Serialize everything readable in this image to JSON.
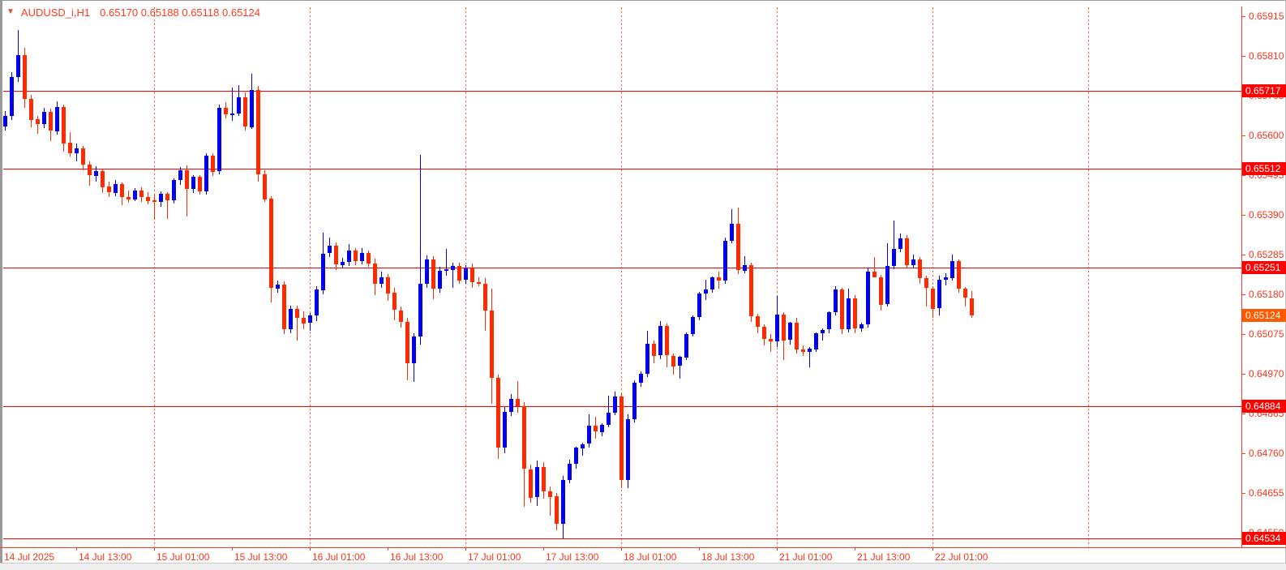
{
  "header": {
    "symbol_period": "AUDUSD_i,H1",
    "ohlc_text": "0.65170 0.65188 0.65118 0.65124",
    "triangle_icon": "▼"
  },
  "colors": {
    "bull": "#0000ee",
    "bear": "#ff2a00",
    "hline": "#ff0000",
    "grid": "#ff5c30",
    "axis": "#ff3c1e",
    "axis_text": "#ff3319",
    "line_label_bg": "#ff0000",
    "current_label_bg": "#ff5a00",
    "label_text": "#ffffff"
  },
  "price_axis": {
    "ticks": [
      "0.65915",
      "0.65810",
      "0.65705",
      "0.65600",
      "0.65495",
      "0.65390",
      "0.65285",
      "0.65180",
      "0.65075",
      "0.64970",
      "0.64865",
      "0.64760",
      "0.64655",
      "0.64550"
    ],
    "line_labels": [
      "0.65717",
      "0.65512",
      "0.65251",
      "0.64884",
      "0.64534"
    ],
    "current_label": "0.65124"
  },
  "time_axis": {
    "labels": [
      {
        "text": "14 Jul 2025",
        "bar": -1
      },
      {
        "text": "14 Jul 13:00",
        "bar": 11
      },
      {
        "text": "15 Jul 01:00",
        "bar": 23
      },
      {
        "text": "15 Jul 13:00",
        "bar": 35
      },
      {
        "text": "16 Jul 01:00",
        "bar": 47
      },
      {
        "text": "16 Jul 13:00",
        "bar": 59
      },
      {
        "text": "17 Jul 01:00",
        "bar": 71
      },
      {
        "text": "17 Jul 13:00",
        "bar": 83
      },
      {
        "text": "18 Jul 01:00",
        "bar": 95
      },
      {
        "text": "18 Jul 13:00",
        "bar": 107
      },
      {
        "text": "21 Jul 01:00",
        "bar": 119
      },
      {
        "text": "21 Jul 13:00",
        "bar": 131
      },
      {
        "text": "22 Jul 01:00",
        "bar": 143
      }
    ]
  },
  "chart_data": {
    "type": "candlestick",
    "symbol": "AUDUSD_i",
    "timeframe": "H1",
    "title": "AUDUSD_i,H1 0.65170 0.65188 0.65118 0.65124",
    "current_bar_ohlc": {
      "open": 0.6517,
      "high": 0.65188,
      "low": 0.65118,
      "close": 0.65124
    },
    "current_price": 0.65124,
    "horizontal_lines": [
      0.65717,
      0.65512,
      0.65251,
      0.64884,
      0.64534
    ],
    "y_axis": {
      "top_price": 0.65915,
      "tick_step": 0.00105,
      "ticks": [
        0.65915,
        0.6581,
        0.65705,
        0.656,
        0.65495,
        0.6539,
        0.65285,
        0.6518,
        0.65075,
        0.6497,
        0.64865,
        0.6476,
        0.64655,
        0.6455
      ]
    },
    "x_axis": {
      "first_bar_time": "14 Jul 2025 02:00",
      "interval_hours": 1,
      "grid_bars": [
        23,
        47,
        71,
        95,
        119,
        143,
        167
      ],
      "bars_per_day": 24
    },
    "candles": [
      [
        0.65625,
        0.65665,
        0.65612,
        0.65652
      ],
      [
        0.65652,
        0.65768,
        0.6564,
        0.65755
      ],
      [
        0.65755,
        0.65878,
        0.65742,
        0.65813
      ],
      [
        0.65813,
        0.65832,
        0.65672,
        0.65697
      ],
      [
        0.65697,
        0.65707,
        0.65622,
        0.65642
      ],
      [
        0.65642,
        0.65652,
        0.65604,
        0.6563
      ],
      [
        0.6563,
        0.65672,
        0.6562,
        0.65662
      ],
      [
        0.65662,
        0.6567,
        0.65585,
        0.65612
      ],
      [
        0.65612,
        0.6569,
        0.65602,
        0.65676
      ],
      [
        0.65676,
        0.65682,
        0.65558,
        0.6558
      ],
      [
        0.6558,
        0.65608,
        0.65545,
        0.65552
      ],
      [
        0.65552,
        0.65578,
        0.65532,
        0.65565
      ],
      [
        0.65565,
        0.65572,
        0.65508,
        0.65522
      ],
      [
        0.65522,
        0.65532,
        0.65468,
        0.65494
      ],
      [
        0.65494,
        0.65518,
        0.65478,
        0.65506
      ],
      [
        0.65506,
        0.65512,
        0.65448,
        0.65464
      ],
      [
        0.65464,
        0.65478,
        0.65438,
        0.65448
      ],
      [
        0.65448,
        0.65482,
        0.6544,
        0.65472
      ],
      [
        0.65472,
        0.65476,
        0.65415,
        0.65438
      ],
      [
        0.65438,
        0.65454,
        0.65422,
        0.65432
      ],
      [
        0.65432,
        0.6546,
        0.65426,
        0.65455
      ],
      [
        0.65455,
        0.65462,
        0.65424,
        0.65438
      ],
      [
        0.65438,
        0.6545,
        0.65418,
        0.65428
      ],
      [
        0.65428,
        0.65446,
        0.65378,
        0.65424
      ],
      [
        0.65424,
        0.65452,
        0.65412,
        0.65446
      ],
      [
        0.65446,
        0.6545,
        0.6538,
        0.65428
      ],
      [
        0.65428,
        0.65486,
        0.6542,
        0.65482
      ],
      [
        0.65482,
        0.65516,
        0.6547,
        0.65508
      ],
      [
        0.65508,
        0.6552,
        0.65385,
        0.65458
      ],
      [
        0.65458,
        0.65496,
        0.65448,
        0.6549
      ],
      [
        0.6549,
        0.65494,
        0.65444,
        0.65452
      ],
      [
        0.65452,
        0.65552,
        0.65444,
        0.65546
      ],
      [
        0.65546,
        0.65552,
        0.65492,
        0.65504
      ],
      [
        0.65504,
        0.65682,
        0.65498,
        0.65672
      ],
      [
        0.65672,
        0.65688,
        0.65644,
        0.65654
      ],
      [
        0.65654,
        0.65726,
        0.65638,
        0.65658
      ],
      [
        0.65658,
        0.65732,
        0.65652,
        0.657
      ],
      [
        0.657,
        0.65714,
        0.65612,
        0.65622
      ],
      [
        0.65622,
        0.65762,
        0.65618,
        0.6572
      ],
      [
        0.6572,
        0.6573,
        0.65478,
        0.65498
      ],
      [
        0.65498,
        0.65508,
        0.65424,
        0.65432
      ],
      [
        0.65432,
        0.6544,
        0.65158,
        0.65196
      ],
      [
        0.65196,
        0.65216,
        0.65184,
        0.65206
      ],
      [
        0.65206,
        0.65214,
        0.65074,
        0.65088
      ],
      [
        0.65088,
        0.6515,
        0.65078,
        0.65142
      ],
      [
        0.65142,
        0.6515,
        0.65058,
        0.65118
      ],
      [
        0.65118,
        0.65134,
        0.65088,
        0.65104
      ],
      [
        0.65104,
        0.6513,
        0.65084,
        0.65124
      ],
      [
        0.65124,
        0.65202,
        0.6511,
        0.65192
      ],
      [
        0.65192,
        0.65342,
        0.6518,
        0.65288
      ],
      [
        0.65288,
        0.6533,
        0.65278,
        0.65308
      ],
      [
        0.65308,
        0.65318,
        0.65244,
        0.65258
      ],
      [
        0.65258,
        0.65276,
        0.65248,
        0.65266
      ],
      [
        0.65266,
        0.65312,
        0.65254,
        0.65296
      ],
      [
        0.65296,
        0.65302,
        0.65258,
        0.65268
      ],
      [
        0.65268,
        0.65302,
        0.6526,
        0.6529
      ],
      [
        0.6529,
        0.65296,
        0.65252,
        0.65262
      ],
      [
        0.65262,
        0.65274,
        0.65178,
        0.65208
      ],
      [
        0.65208,
        0.6524,
        0.65198,
        0.65226
      ],
      [
        0.65226,
        0.65234,
        0.65162,
        0.65184
      ],
      [
        0.65184,
        0.65198,
        0.65112,
        0.65138
      ],
      [
        0.65138,
        0.65148,
        0.65092,
        0.65108
      ],
      [
        0.65108,
        0.65118,
        0.64952,
        0.64998
      ],
      [
        0.64998,
        0.65078,
        0.64948,
        0.65068
      ],
      [
        0.65068,
        0.65548,
        0.65048,
        0.65208
      ],
      [
        0.65208,
        0.65282,
        0.65198,
        0.65272
      ],
      [
        0.65272,
        0.6528,
        0.65168,
        0.65194
      ],
      [
        0.65194,
        0.65252,
        0.65184,
        0.65242
      ],
      [
        0.65242,
        0.653,
        0.6523,
        0.65246
      ],
      [
        0.65246,
        0.65264,
        0.65198,
        0.65256
      ],
      [
        0.65256,
        0.65264,
        0.65208,
        0.65218
      ],
      [
        0.65218,
        0.65258,
        0.65208,
        0.65248
      ],
      [
        0.65248,
        0.65262,
        0.65198,
        0.65212
      ],
      [
        0.65212,
        0.65224,
        0.65202,
        0.65208
      ],
      [
        0.65208,
        0.65222,
        0.65084,
        0.65138
      ],
      [
        0.65138,
        0.65194,
        0.6489,
        0.6496
      ],
      [
        0.6496,
        0.64968,
        0.64746,
        0.64776
      ],
      [
        0.64776,
        0.64882,
        0.6476,
        0.6487
      ],
      [
        0.6487,
        0.64916,
        0.64858,
        0.64904
      ],
      [
        0.64904,
        0.6495,
        0.64868,
        0.64884
      ],
      [
        0.64884,
        0.64896,
        0.64618,
        0.64718
      ],
      [
        0.64718,
        0.6473,
        0.6463,
        0.64644
      ],
      [
        0.64644,
        0.6474,
        0.6462,
        0.64724
      ],
      [
        0.64724,
        0.64736,
        0.6464,
        0.6466
      ],
      [
        0.6466,
        0.64672,
        0.64596,
        0.64646
      ],
      [
        0.64646,
        0.64654,
        0.64556,
        0.64574
      ],
      [
        0.64574,
        0.647,
        0.64534,
        0.6469
      ],
      [
        0.6469,
        0.64742,
        0.6468,
        0.64732
      ],
      [
        0.64732,
        0.64778,
        0.6472,
        0.64774
      ],
      [
        0.64774,
        0.64788,
        0.64754,
        0.64784
      ],
      [
        0.64784,
        0.64862,
        0.64776,
        0.64832
      ],
      [
        0.64832,
        0.64856,
        0.64798,
        0.64816
      ],
      [
        0.64816,
        0.6484,
        0.64806,
        0.64836
      ],
      [
        0.64836,
        0.64912,
        0.64828,
        0.64868
      ],
      [
        0.64868,
        0.64922,
        0.6486,
        0.6491
      ],
      [
        0.6491,
        0.64918,
        0.64668,
        0.6469
      ],
      [
        0.6469,
        0.64862,
        0.64668,
        0.6485
      ],
      [
        0.6485,
        0.64952,
        0.64842,
        0.64946
      ],
      [
        0.64946,
        0.64976,
        0.64936,
        0.6497
      ],
      [
        0.6497,
        0.65084,
        0.64962,
        0.6505
      ],
      [
        0.6505,
        0.65058,
        0.64998,
        0.65018
      ],
      [
        0.65018,
        0.6511,
        0.65008,
        0.65096
      ],
      [
        0.65096,
        0.65102,
        0.64988,
        0.65018
      ],
      [
        0.65018,
        0.65024,
        0.64968,
        0.6499
      ],
      [
        0.6499,
        0.65018,
        0.64958,
        0.65014
      ],
      [
        0.65014,
        0.6508,
        0.65006,
        0.65076
      ],
      [
        0.65076,
        0.65124,
        0.65068,
        0.6512
      ],
      [
        0.6512,
        0.65186,
        0.65112,
        0.65182
      ],
      [
        0.65182,
        0.65218,
        0.65164,
        0.65192
      ],
      [
        0.65192,
        0.65228,
        0.65184,
        0.65224
      ],
      [
        0.65224,
        0.6524,
        0.65194,
        0.65216
      ],
      [
        0.65216,
        0.6533,
        0.65208,
        0.65322
      ],
      [
        0.65322,
        0.65404,
        0.65314,
        0.65366
      ],
      [
        0.65366,
        0.6541,
        0.65234,
        0.65244
      ],
      [
        0.65244,
        0.6528,
        0.65236,
        0.65258
      ],
      [
        0.65258,
        0.65264,
        0.65108,
        0.65122
      ],
      [
        0.65122,
        0.65128,
        0.65078,
        0.65094
      ],
      [
        0.65094,
        0.651,
        0.65046,
        0.65062
      ],
      [
        0.65062,
        0.65076,
        0.65028,
        0.65056
      ],
      [
        0.65056,
        0.65176,
        0.6504,
        0.65126
      ],
      [
        0.65126,
        0.65132,
        0.65006,
        0.65058
      ],
      [
        0.65058,
        0.65108,
        0.65048,
        0.65104
      ],
      [
        0.65104,
        0.65118,
        0.65024,
        0.65034
      ],
      [
        0.65034,
        0.65046,
        0.65018,
        0.65028
      ],
      [
        0.65028,
        0.6504,
        0.64988,
        0.65036
      ],
      [
        0.65036,
        0.6508,
        0.65028,
        0.65078
      ],
      [
        0.65078,
        0.6509,
        0.65058,
        0.65086
      ],
      [
        0.65086,
        0.65134,
        0.65078,
        0.65132
      ],
      [
        0.65132,
        0.65202,
        0.65124,
        0.65192
      ],
      [
        0.65192,
        0.65198,
        0.65074,
        0.65088
      ],
      [
        0.65088,
        0.65196,
        0.6508,
        0.6517
      ],
      [
        0.6517,
        0.65178,
        0.65078,
        0.6509
      ],
      [
        0.6509,
        0.65104,
        0.65082,
        0.651
      ],
      [
        0.651,
        0.6525,
        0.65092,
        0.6524
      ],
      [
        0.6524,
        0.65278,
        0.65224,
        0.65226
      ],
      [
        0.65226,
        0.65232,
        0.65138,
        0.65154
      ],
      [
        0.65154,
        0.65316,
        0.65148,
        0.65254
      ],
      [
        0.65254,
        0.65376,
        0.65246,
        0.653
      ],
      [
        0.653,
        0.6534,
        0.65292,
        0.65328
      ],
      [
        0.65328,
        0.65336,
        0.65248,
        0.65258
      ],
      [
        0.65258,
        0.65286,
        0.65248,
        0.65272
      ],
      [
        0.65272,
        0.65278,
        0.65208,
        0.65222
      ],
      [
        0.65222,
        0.6523,
        0.65148,
        0.65196
      ],
      [
        0.65196,
        0.65202,
        0.65118,
        0.65142
      ],
      [
        0.65142,
        0.6523,
        0.65124,
        0.65218
      ],
      [
        0.65218,
        0.65236,
        0.65204,
        0.65224
      ],
      [
        0.65224,
        0.65284,
        0.65216,
        0.65268
      ],
      [
        0.65268,
        0.65272,
        0.65184,
        0.65196
      ],
      [
        0.65196,
        0.652,
        0.65148,
        0.65172
      ],
      [
        0.6517,
        0.65188,
        0.65118,
        0.65124
      ]
    ]
  }
}
